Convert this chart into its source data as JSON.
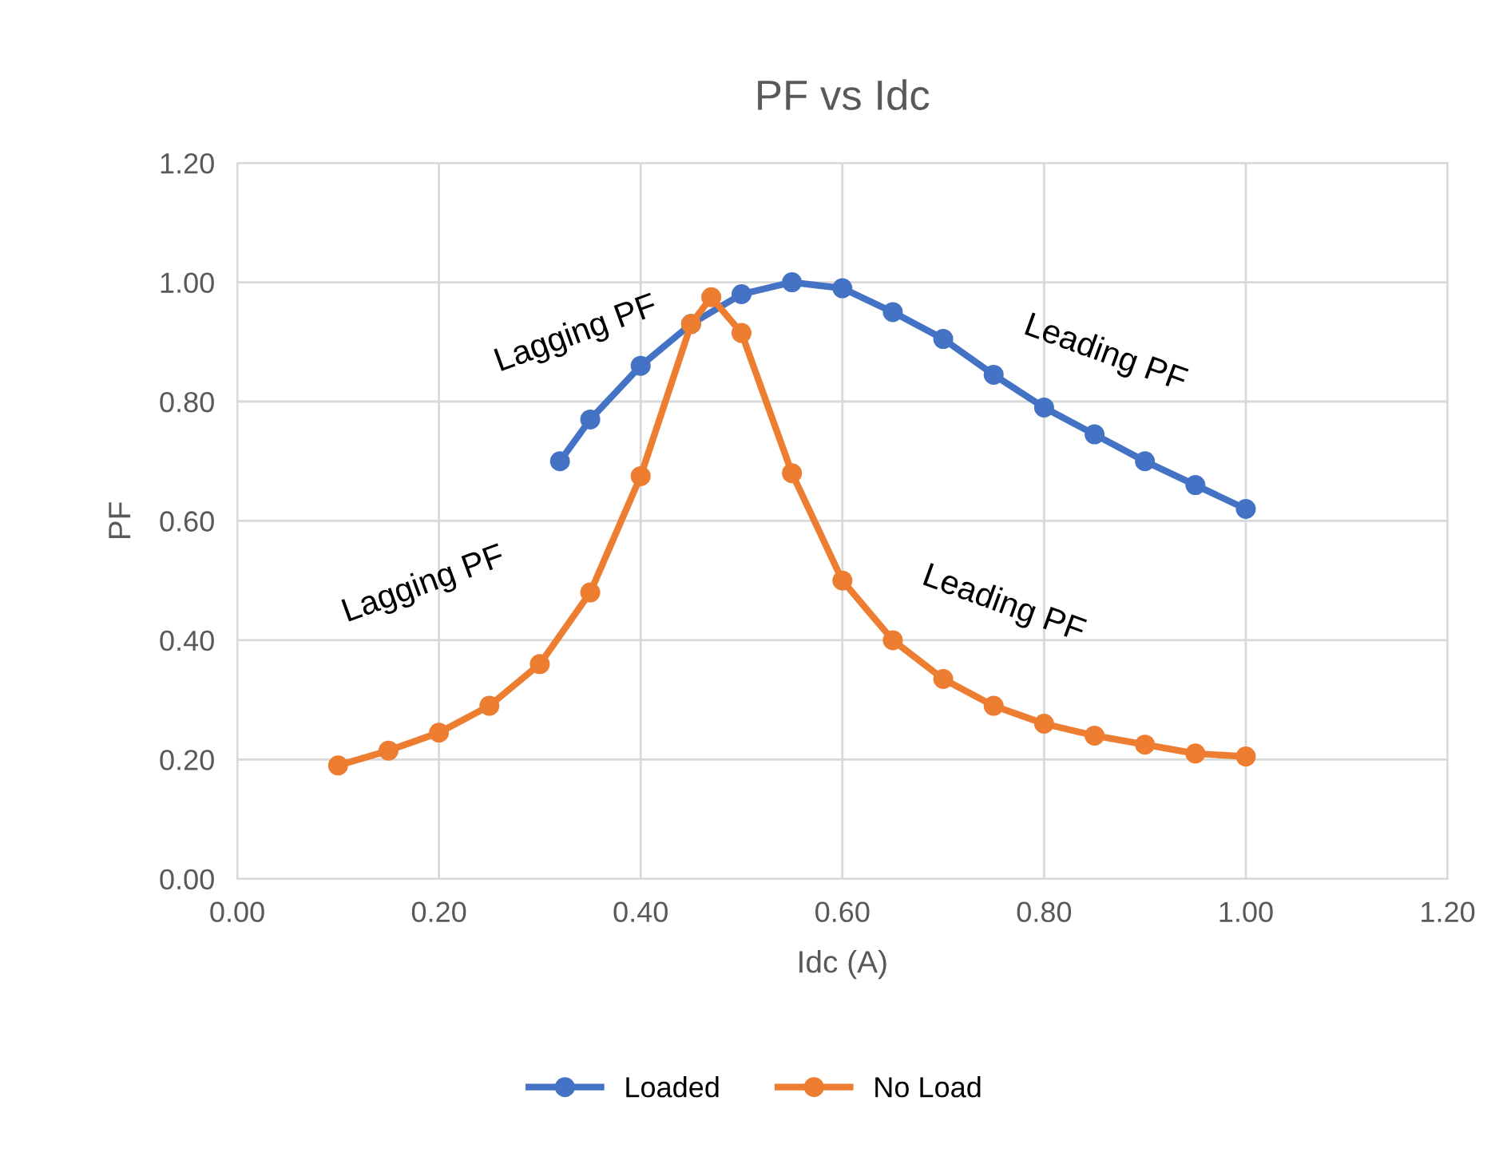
{
  "chart_data": {
    "type": "line",
    "title": "PF vs Idc",
    "xlabel": "Idc (A)",
    "ylabel": "PF",
    "xlim": [
      0,
      1.2
    ],
    "ylim": [
      0,
      1.2
    ],
    "xticks": [
      {
        "value": 0,
        "label": "0.00"
      },
      {
        "value": 0.2,
        "label": "0.20"
      },
      {
        "value": 0.4,
        "label": "0.40"
      },
      {
        "value": 0.6,
        "label": "0.60"
      },
      {
        "value": 0.8,
        "label": "0.80"
      },
      {
        "value": 1.0,
        "label": "1.00"
      },
      {
        "value": 1.2,
        "label": "1.20"
      }
    ],
    "yticks": [
      {
        "value": 0,
        "label": "0.00"
      },
      {
        "value": 0.2,
        "label": "0.20"
      },
      {
        "value": 0.4,
        "label": "0.40"
      },
      {
        "value": 0.6,
        "label": "0.60"
      },
      {
        "value": 0.8,
        "label": "0.80"
      },
      {
        "value": 1.0,
        "label": "1.00"
      },
      {
        "value": 1.2,
        "label": "1.20"
      }
    ],
    "grid": true,
    "legend": "bottom",
    "marker": "circle",
    "line_style": "solid",
    "series": [
      {
        "name": "Loaded",
        "color": "#4472c4",
        "x": [
          0.32,
          0.35,
          0.4,
          0.45,
          0.5,
          0.55,
          0.6,
          0.65,
          0.7,
          0.75,
          0.8,
          0.85,
          0.9,
          0.95,
          1.0
        ],
        "values": [
          0.7,
          0.77,
          0.86,
          0.93,
          0.98,
          1.0,
          0.99,
          0.95,
          0.905,
          0.845,
          0.79,
          0.745,
          0.7,
          0.66,
          0.62
        ]
      },
      {
        "name": "No Load",
        "color": "#ed7d31",
        "x": [
          0.1,
          0.15,
          0.2,
          0.25,
          0.3,
          0.35,
          0.4,
          0.45,
          0.47,
          0.5,
          0.55,
          0.6,
          0.65,
          0.7,
          0.75,
          0.8,
          0.85,
          0.9,
          0.95,
          1.0
        ],
        "values": [
          0.19,
          0.215,
          0.245,
          0.29,
          0.36,
          0.48,
          0.675,
          0.93,
          0.975,
          0.915,
          0.68,
          0.5,
          0.4,
          0.335,
          0.29,
          0.26,
          0.24,
          0.225,
          0.21,
          0.205
        ]
      }
    ],
    "annotations": [
      "Lagging PF",
      "Leading PF",
      "Lagging PF",
      "Leading PF"
    ]
  }
}
